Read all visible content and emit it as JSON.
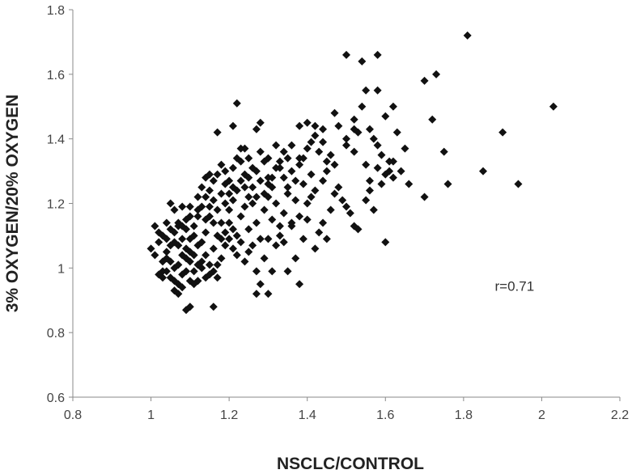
{
  "chart_data": {
    "type": "scatter",
    "xlabel": "NSCLC/CONTROL",
    "ylabel": "3% OXYGEN/20% OXYGEN",
    "xlim": [
      0.8,
      2.2
    ],
    "ylim": [
      0.6,
      1.8
    ],
    "xticks": [
      "0.8",
      "1",
      "1.2",
      "1.4",
      "1.6",
      "1.8",
      "2",
      "2.2"
    ],
    "yticks": [
      "0.6",
      "0.8",
      "1",
      "1.2",
      "1.4",
      "1.6",
      "1.8"
    ],
    "grid": false,
    "legend": "none",
    "marker": "diamond",
    "marker_color": "#111111",
    "annotations": [
      {
        "text": "r=0.71",
        "x": 1.88,
        "y": 0.93
      }
    ],
    "series": [
      {
        "points": [
          [
            1.81,
            1.72
          ],
          [
            1.5,
            1.66
          ],
          [
            1.54,
            1.64
          ],
          [
            1.58,
            1.66
          ],
          [
            1.7,
            1.58
          ],
          [
            1.73,
            1.6
          ],
          [
            2.03,
            1.5
          ],
          [
            1.9,
            1.42
          ],
          [
            1.85,
            1.3
          ],
          [
            1.94,
            1.26
          ],
          [
            1.76,
            1.26
          ],
          [
            1.7,
            1.22
          ],
          [
            1.75,
            1.36
          ],
          [
            1.72,
            1.46
          ],
          [
            1.6,
            1.08
          ],
          [
            1.22,
            1.51
          ],
          [
            1.28,
            1.45
          ],
          [
            1.27,
            1.43
          ],
          [
            1.23,
            1.37
          ],
          [
            1.17,
            1.42
          ],
          [
            1.21,
            1.44
          ],
          [
            1.4,
            1.45
          ],
          [
            1.42,
            1.44
          ],
          [
            1.38,
            1.44
          ],
          [
            1.44,
            1.43
          ],
          [
            1.47,
            1.48
          ],
          [
            1.52,
            1.43
          ],
          [
            1.55,
            1.55
          ],
          [
            1.58,
            1.55
          ],
          [
            1.53,
            1.42
          ],
          [
            1.57,
            1.4
          ],
          [
            1.6,
            1.47
          ],
          [
            1.62,
            1.5
          ],
          [
            1.63,
            1.42
          ],
          [
            1.65,
            1.37
          ],
          [
            1.62,
            1.33
          ],
          [
            1.61,
            1.3
          ],
          [
            1.59,
            1.26
          ],
          [
            1.56,
            1.24
          ],
          [
            1.55,
            1.32
          ],
          [
            1.52,
            1.36
          ],
          [
            1.5,
            1.38
          ],
          [
            1.47,
            1.32
          ],
          [
            1.45,
            1.3
          ],
          [
            1.44,
            1.27
          ],
          [
            1.42,
            1.24
          ],
          [
            1.41,
            1.29
          ],
          [
            1.4,
            1.2
          ],
          [
            1.38,
            1.34
          ],
          [
            1.36,
            1.38
          ],
          [
            1.35,
            1.25
          ],
          [
            1.33,
            1.31
          ],
          [
            1.31,
            1.28
          ],
          [
            1.3,
            1.26
          ],
          [
            1.29,
            1.33
          ],
          [
            1.27,
            1.3
          ],
          [
            1.25,
            1.22
          ],
          [
            1.24,
            1.29
          ],
          [
            1.23,
            1.33
          ],
          [
            1.21,
            1.25
          ],
          [
            1.2,
            1.27
          ],
          [
            1.19,
            1.3
          ],
          [
            1.18,
            1.23
          ],
          [
            1.17,
            1.18
          ],
          [
            1.16,
            1.21
          ],
          [
            1.15,
            1.29
          ],
          [
            1.14,
            1.15
          ],
          [
            1.13,
            1.25
          ],
          [
            1.12,
            1.18
          ],
          [
            1.11,
            1.1
          ],
          [
            1.1,
            1.16
          ],
          [
            1.09,
            1.12
          ],
          [
            1.08,
            1.19
          ],
          [
            1.07,
            1.14
          ],
          [
            1.06,
            1.08
          ],
          [
            1.05,
            1.12
          ],
          [
            1.04,
            1.05
          ],
          [
            1.03,
            1.02
          ],
          [
            1.02,
            0.98
          ],
          [
            1.03,
            0.97
          ],
          [
            1.04,
            0.99
          ],
          [
            1.05,
            1.02
          ],
          [
            1.06,
            1.0
          ],
          [
            1.07,
            0.95
          ],
          [
            1.08,
            0.98
          ],
          [
            1.09,
            1.03
          ],
          [
            1.1,
            1.05
          ],
          [
            1.11,
            0.99
          ],
          [
            1.12,
            1.07
          ],
          [
            1.13,
            1.02
          ],
          [
            1.14,
            1.04
          ],
          [
            1.15,
            0.98
          ],
          [
            1.16,
            1.06
          ],
          [
            1.17,
            1.01
          ],
          [
            1.18,
            1.09
          ],
          [
            1.19,
            1.11
          ],
          [
            1.2,
            1.14
          ],
          [
            1.21,
            1.06
          ],
          [
            1.22,
            1.1
          ],
          [
            1.23,
            1.16
          ],
          [
            1.24,
            1.19
          ],
          [
            1.25,
            1.12
          ],
          [
            1.26,
            1.2
          ],
          [
            1.27,
            1.14
          ],
          [
            1.28,
            1.09
          ],
          [
            1.29,
            1.18
          ],
          [
            1.3,
            1.22
          ],
          [
            1.31,
            1.15
          ],
          [
            1.32,
            1.2
          ],
          [
            1.33,
            1.1
          ],
          [
            1.34,
            1.17
          ],
          [
            1.35,
            1.23
          ],
          [
            1.36,
            1.13
          ],
          [
            1.37,
            1.21
          ],
          [
            1.38,
            1.16
          ],
          [
            1.39,
            1.26
          ],
          [
            1.4,
            1.15
          ],
          [
            1.41,
            1.22
          ],
          [
            1.42,
            1.06
          ],
          [
            1.43,
            1.11
          ],
          [
            1.44,
            1.14
          ],
          [
            1.45,
            1.09
          ],
          [
            1.46,
            1.18
          ],
          [
            1.47,
            1.23
          ],
          [
            1.48,
            1.25
          ],
          [
            1.49,
            1.21
          ],
          [
            1.5,
            1.19
          ],
          [
            1.51,
            1.17
          ],
          [
            1.52,
            1.13
          ],
          [
            1.53,
            1.12
          ],
          [
            1.55,
            1.21
          ],
          [
            1.56,
            1.27
          ],
          [
            1.57,
            1.18
          ],
          [
            1.58,
            1.31
          ],
          [
            1.6,
            1.29
          ],
          [
            1.61,
            1.33
          ],
          [
            1.62,
            1.28
          ],
          [
            1.64,
            1.3
          ],
          [
            1.66,
            1.26
          ],
          [
            1.0,
            1.06
          ],
          [
            1.01,
            1.04
          ],
          [
            1.02,
            1.08
          ],
          [
            1.01,
            1.13
          ],
          [
            1.02,
            1.11
          ],
          [
            1.03,
            1.1
          ],
          [
            1.04,
            1.14
          ],
          [
            1.05,
            1.2
          ],
          [
            1.06,
            1.18
          ],
          [
            1.07,
            1.13
          ],
          [
            1.08,
            1.09
          ],
          [
            1.09,
            1.06
          ],
          [
            1.1,
            1.02
          ],
          [
            1.11,
            1.04
          ],
          [
            1.12,
            0.96
          ],
          [
            1.13,
            1.0
          ],
          [
            1.14,
            0.97
          ],
          [
            1.15,
            1.01
          ],
          [
            1.16,
            0.99
          ],
          [
            1.17,
            0.97
          ],
          [
            1.18,
            1.03
          ],
          [
            1.19,
            1.07
          ],
          [
            1.2,
            1.09
          ],
          [
            1.21,
            1.12
          ],
          [
            1.22,
            1.04
          ],
          [
            1.23,
            1.08
          ],
          [
            1.24,
            1.02
          ],
          [
            1.25,
            1.05
          ],
          [
            1.26,
            1.07
          ],
          [
            1.27,
            0.99
          ],
          [
            1.28,
            0.95
          ],
          [
            1.29,
            1.03
          ],
          [
            1.3,
            1.09
          ],
          [
            1.31,
            0.99
          ],
          [
            1.32,
            1.07
          ],
          [
            1.33,
            1.13
          ],
          [
            1.34,
            1.08
          ],
          [
            1.35,
            0.99
          ],
          [
            1.36,
            1.14
          ],
          [
            1.37,
            1.03
          ],
          [
            1.38,
            0.95
          ],
          [
            1.39,
            1.09
          ],
          [
            1.27,
            0.92
          ],
          [
            1.3,
            0.92
          ],
          [
            1.16,
            0.88
          ],
          [
            1.09,
            0.87
          ],
          [
            1.1,
            0.88
          ],
          [
            1.07,
            0.92
          ],
          [
            1.06,
            0.93
          ],
          [
            1.08,
            0.94
          ],
          [
            1.03,
            0.99
          ],
          [
            1.04,
            1.03
          ],
          [
            1.05,
            0.97
          ],
          [
            1.06,
            0.96
          ],
          [
            1.07,
            1.01
          ],
          [
            1.08,
            1.04
          ],
          [
            1.09,
            0.99
          ],
          [
            1.1,
            0.96
          ],
          [
            1.11,
            0.95
          ],
          [
            1.12,
            1.01
          ],
          [
            1.13,
            1.08
          ],
          [
            1.14,
            1.11
          ],
          [
            1.15,
            1.16
          ],
          [
            1.16,
            1.14
          ],
          [
            1.17,
            1.1
          ],
          [
            1.18,
            1.14
          ],
          [
            1.19,
            1.2
          ],
          [
            1.2,
            1.18
          ],
          [
            1.21,
            1.21
          ],
          [
            1.22,
            1.24
          ],
          [
            1.23,
            1.27
          ],
          [
            1.24,
            1.25
          ],
          [
            1.25,
            1.28
          ],
          [
            1.26,
            1.25
          ],
          [
            1.27,
            1.22
          ],
          [
            1.28,
            1.27
          ],
          [
            1.29,
            1.23
          ],
          [
            1.3,
            1.28
          ],
          [
            1.31,
            1.25
          ],
          [
            1.32,
            1.31
          ],
          [
            1.33,
            1.33
          ],
          [
            1.34,
            1.28
          ],
          [
            1.35,
            1.34
          ],
          [
            1.36,
            1.3
          ],
          [
            1.37,
            1.27
          ],
          [
            1.38,
            1.32
          ],
          [
            1.39,
            1.34
          ],
          [
            1.4,
            1.37
          ],
          [
            1.41,
            1.39
          ],
          [
            1.42,
            1.41
          ],
          [
            1.43,
            1.36
          ],
          [
            1.44,
            1.39
          ],
          [
            1.45,
            1.33
          ],
          [
            1.46,
            1.35
          ],
          [
            1.48,
            1.44
          ],
          [
            1.5,
            1.4
          ],
          [
            1.52,
            1.46
          ],
          [
            1.54,
            1.5
          ],
          [
            1.56,
            1.43
          ],
          [
            1.58,
            1.38
          ],
          [
            1.59,
            1.35
          ],
          [
            1.1,
            1.19
          ],
          [
            1.12,
            1.22
          ],
          [
            1.14,
            1.28
          ],
          [
            1.15,
            1.24
          ],
          [
            1.16,
            1.27
          ],
          [
            1.17,
            1.29
          ],
          [
            1.18,
            1.32
          ],
          [
            1.19,
            1.26
          ],
          [
            1.2,
            1.23
          ],
          [
            1.21,
            1.31
          ],
          [
            1.22,
            1.34
          ],
          [
            1.24,
            1.37
          ],
          [
            1.25,
            1.34
          ],
          [
            1.26,
            1.31
          ],
          [
            1.28,
            1.36
          ],
          [
            1.3,
            1.34
          ],
          [
            1.32,
            1.38
          ],
          [
            1.34,
            1.36
          ],
          [
            1.04,
            1.09
          ],
          [
            1.05,
            1.07
          ],
          [
            1.06,
            1.11
          ],
          [
            1.07,
            1.07
          ],
          [
            1.08,
            1.13
          ],
          [
            1.09,
            1.15
          ],
          [
            1.1,
            1.09
          ],
          [
            1.11,
            1.13
          ],
          [
            1.12,
            1.16
          ],
          [
            1.13,
            1.19
          ],
          [
            1.14,
            1.22
          ],
          [
            1.15,
            1.19
          ]
        ]
      }
    ]
  }
}
